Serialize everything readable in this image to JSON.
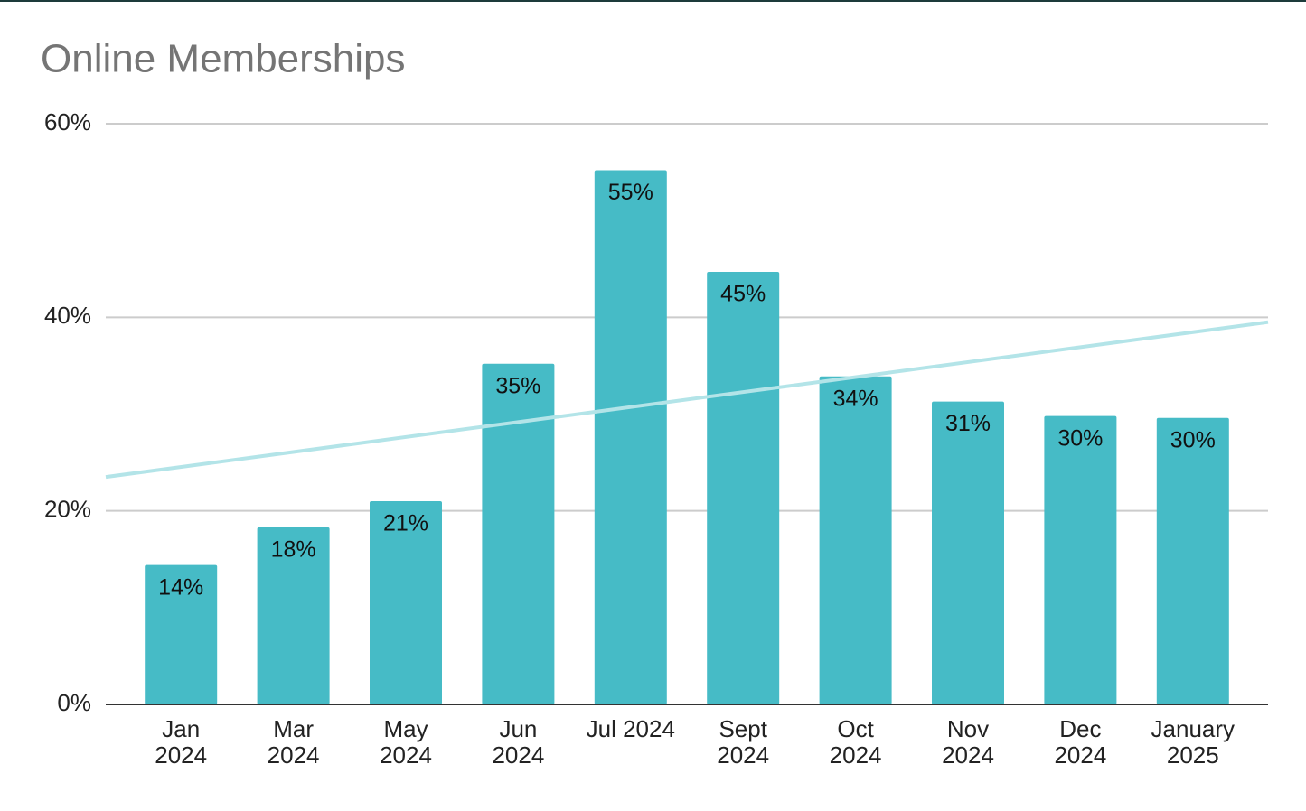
{
  "chart_data": {
    "type": "bar",
    "title": "Online Memberships",
    "categories": [
      [
        "Jan",
        "2024"
      ],
      [
        "Mar",
        "2024"
      ],
      [
        "May",
        "2024"
      ],
      [
        "Jun",
        "2024"
      ],
      [
        "Jul 2024"
      ],
      [
        "Sept",
        "2024"
      ],
      [
        "Oct",
        "2024"
      ],
      [
        "Nov",
        "2024"
      ],
      [
        "Dec",
        "2024"
      ],
      [
        "January",
        "2025"
      ]
    ],
    "values": [
      14.4,
      18.3,
      21.0,
      35.2,
      55.2,
      44.7,
      33.9,
      31.3,
      29.8,
      29.6
    ],
    "value_labels": [
      "14%",
      "18%",
      "21%",
      "35%",
      "55%",
      "45%",
      "34%",
      "31%",
      "30%",
      "30%"
    ],
    "color": "#46bbc6",
    "ylim": [
      0,
      60
    ],
    "yticks": [
      {
        "value": 0,
        "label": "0%"
      },
      {
        "value": 20,
        "label": "20%"
      },
      {
        "value": 40,
        "label": "40%"
      },
      {
        "value": 60,
        "label": "60%"
      }
    ],
    "grid": true,
    "trendline": {
      "color": "#b3e4e8",
      "start": 23.5,
      "end": 39.5
    }
  }
}
